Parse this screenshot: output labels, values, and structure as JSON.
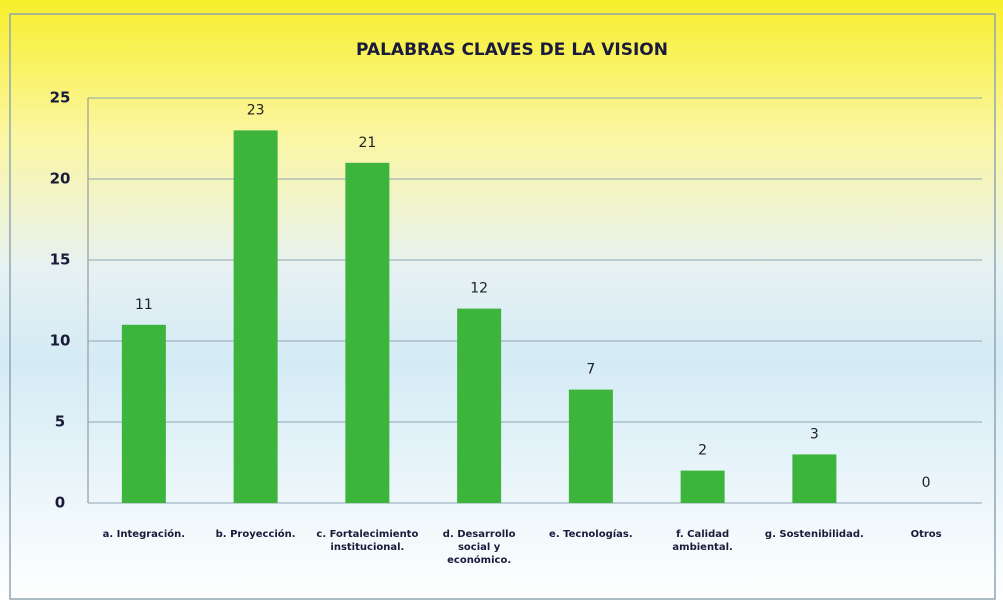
{
  "chart_data": {
    "type": "bar",
    "title": "PALABRAS CLAVES DE LA VISION",
    "categories": [
      "a. Integración.",
      "b. Proyección.",
      "c. Fortalecimiento institucional.",
      "d. Desarrollo social y económico.",
      "e. Tecnologías.",
      "f. Calidad ambiental.",
      "g. Sostenibilidad.",
      "Otros"
    ],
    "values": [
      11,
      23,
      21,
      12,
      7,
      2,
      3,
      0
    ],
    "color": "#3db53d",
    "ylim": [
      0,
      25
    ],
    "yticks": [
      0,
      5,
      10,
      15,
      20,
      25
    ],
    "grid": true
  }
}
